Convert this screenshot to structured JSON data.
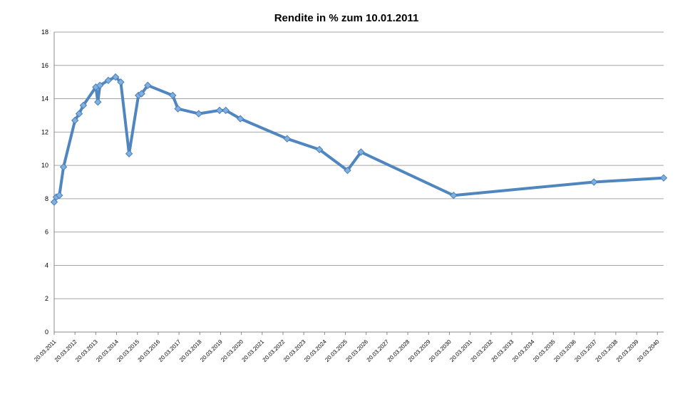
{
  "chart_data": {
    "type": "line",
    "title": "Rendite in % zum 10.01.2011",
    "xlabel": "",
    "ylabel": "",
    "ylim": [
      0,
      18
    ],
    "y_ticks": [
      "0",
      "2",
      "4",
      "6",
      "8",
      "10",
      "12",
      "14",
      "16",
      "18"
    ],
    "x_tick_labels": [
      "20.03.2011",
      "20.03.2012",
      "20.03.2013",
      "20.03.2014",
      "20.03.2015",
      "20.03.2016",
      "20.03.2017",
      "20.03.2018",
      "20.03.2019",
      "20.03.2020",
      "20.03.2021",
      "20.03.2022",
      "20.03.2023",
      "20.03.2024",
      "20.03.2025",
      "20.03.2026",
      "20.03.2027",
      "20.03.2028",
      "20.03.2029",
      "20.03.2030",
      "20.03.2031",
      "20.03.2032",
      "20.03.2033",
      "20.03.2034",
      "20.03.2035",
      "20.03.2036",
      "20.03.2037",
      "20.03.2038",
      "20.03.2039",
      "20.03.2040"
    ],
    "grid": true,
    "legend": "none",
    "series": [
      {
        "color": "#4f86c0",
        "points": [
          {
            "x": "2011.00",
            "y": 7.8
          },
          {
            "x": "2011.10",
            "y": 8.1
          },
          {
            "x": "2011.25",
            "y": 8.2
          },
          {
            "x": "2011.45",
            "y": 9.9
          },
          {
            "x": "2012.00",
            "y": 12.7
          },
          {
            "x": "2012.20",
            "y": 13.1
          },
          {
            "x": "2012.40",
            "y": 13.6
          },
          {
            "x": "2013.00",
            "y": 14.7
          },
          {
            "x": "2013.10",
            "y": 13.8
          },
          {
            "x": "2013.20",
            "y": 14.8
          },
          {
            "x": "2013.60",
            "y": 15.1
          },
          {
            "x": "2013.95",
            "y": 15.3
          },
          {
            "x": "2014.20",
            "y": 15.0
          },
          {
            "x": "2014.60",
            "y": 10.7
          },
          {
            "x": "2015.05",
            "y": 14.2
          },
          {
            "x": "2015.20",
            "y": 14.3
          },
          {
            "x": "2015.50",
            "y": 14.8
          },
          {
            "x": "2016.70",
            "y": 14.2
          },
          {
            "x": "2016.95",
            "y": 13.4
          },
          {
            "x": "2017.95",
            "y": 13.1
          },
          {
            "x": "2018.95",
            "y": 13.3
          },
          {
            "x": "2019.25",
            "y": 13.3
          },
          {
            "x": "2019.95",
            "y": 12.8
          },
          {
            "x": "2022.20",
            "y": 11.6
          },
          {
            "x": "2023.75",
            "y": 10.95
          },
          {
            "x": "2025.10",
            "y": 9.7
          },
          {
            "x": "2025.75",
            "y": 10.8
          },
          {
            "x": "2030.20",
            "y": 8.2
          },
          {
            "x": "2036.95",
            "y": 9.0
          },
          {
            "x": "2040.30",
            "y": 9.25
          }
        ]
      }
    ]
  }
}
